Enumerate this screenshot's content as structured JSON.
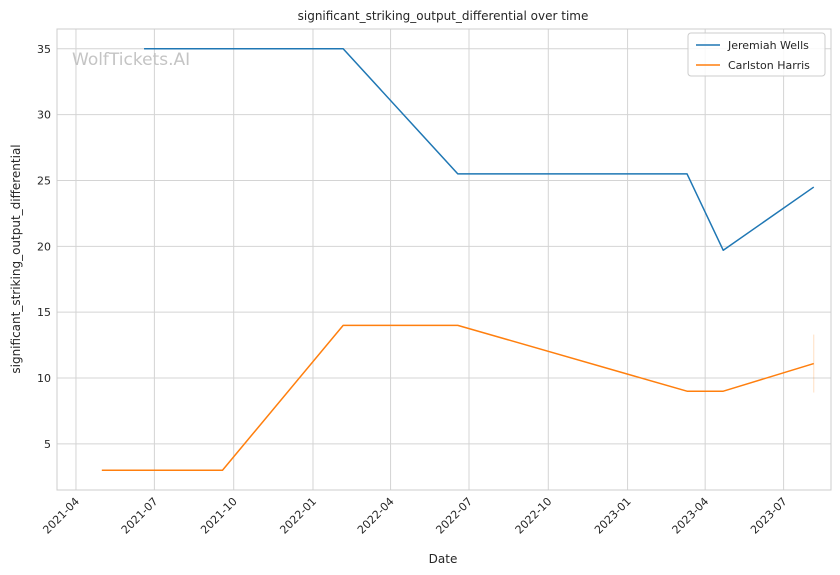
{
  "chart_data": {
    "type": "line",
    "title": "significant_striking_output_differential over time",
    "xlabel": "Date",
    "ylabel": "significant_striking_output_differential",
    "watermark": "WolfTickets.AI",
    "xlim": [
      "2021-03-10",
      "2023-08-25"
    ],
    "ylim": [
      1.5,
      36.5
    ],
    "x_ticks": [
      "2021-04",
      "2021-07",
      "2021-10",
      "2022-01",
      "2022-04",
      "2022-07",
      "2022-10",
      "2023-01",
      "2023-04",
      "2023-07"
    ],
    "y_ticks": [
      5,
      10,
      15,
      20,
      25,
      30,
      35
    ],
    "grid": true,
    "legend": "top-right",
    "series": [
      {
        "name": "Jeremiah Wells",
        "color": "#1f77b4",
        "points": [
          {
            "date": "2021-06-19",
            "value": 35
          },
          {
            "date": "2022-02-05",
            "value": 35
          },
          {
            "date": "2022-06-18",
            "value": 25.5
          },
          {
            "date": "2023-03-11",
            "value": 25.5
          },
          {
            "date": "2023-04-22",
            "value": 19.7
          },
          {
            "date": "2023-08-05",
            "value": 24.5
          }
        ]
      },
      {
        "name": "Carlston Harris",
        "color": "#ff7f0e",
        "points": [
          {
            "date": "2021-05-01",
            "value": 3
          },
          {
            "date": "2021-09-18",
            "value": 3
          },
          {
            "date": "2022-02-05",
            "value": 14
          },
          {
            "date": "2022-06-18",
            "value": 14
          },
          {
            "date": "2023-03-11",
            "value": 9
          },
          {
            "date": "2023-04-22",
            "value": 9
          },
          {
            "date": "2023-08-05",
            "value": 11.1
          }
        ]
      }
    ]
  }
}
